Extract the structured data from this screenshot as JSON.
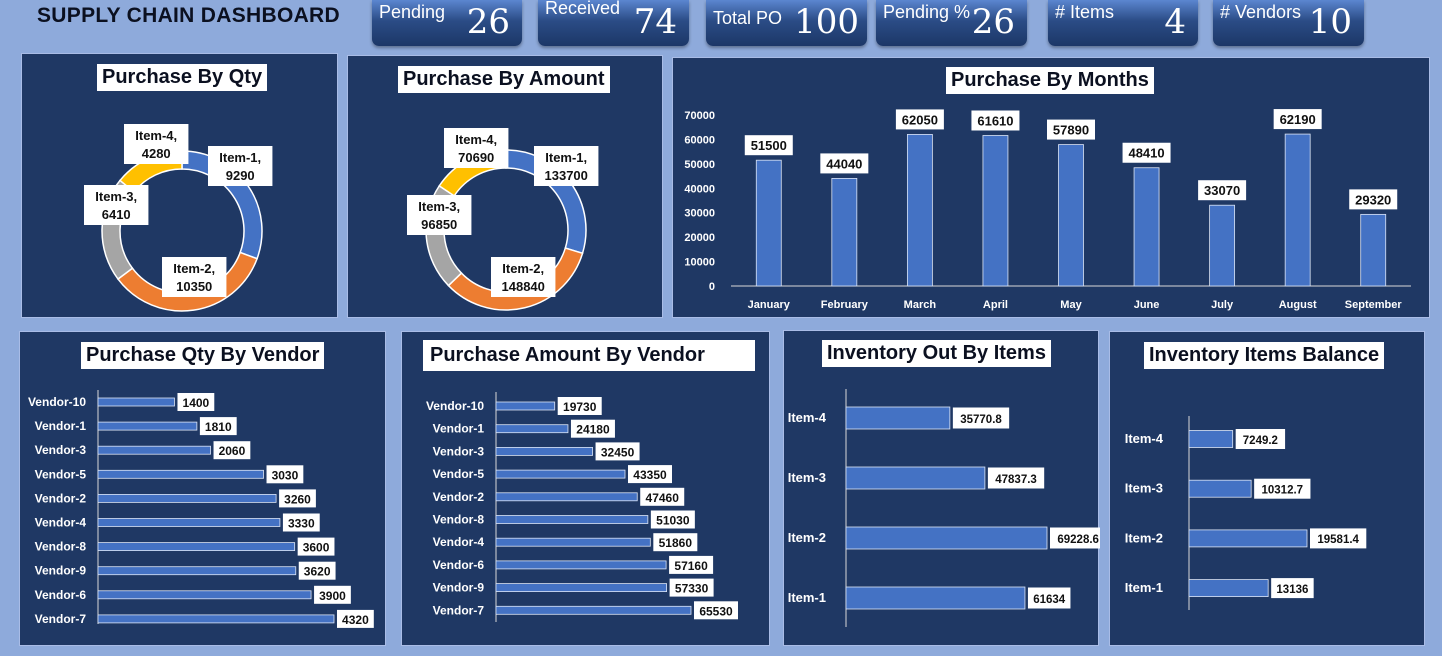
{
  "header": {
    "title": "SUPPLY CHAIN DASHBOARD"
  },
  "kpis": [
    {
      "label": "Pending",
      "value": "26"
    },
    {
      "label": "Received",
      "value": "74"
    },
    {
      "label": "Total PO",
      "value": "100"
    },
    {
      "label": "Pending %",
      "value": "26"
    },
    {
      "label": "# Items",
      "value": "4"
    },
    {
      "label": "# Vendors",
      "value": "10"
    }
  ],
  "colors": {
    "panel": "#1f3864",
    "bar": "#4472c4",
    "item1": "#4472c4",
    "item2": "#ed7d31",
    "item3": "#a5a5a5",
    "item4": "#ffc000"
  },
  "chart_data": [
    {
      "type": "pie",
      "title": "Purchase By Qty",
      "categories": [
        "Item-1",
        "Item-2",
        "Item-3",
        "Item-4"
      ],
      "values": [
        9290,
        10350,
        6410,
        4280
      ]
    },
    {
      "type": "pie",
      "title": "Purchase By Amount",
      "categories": [
        "Item-1",
        "Item-2",
        "Item-3",
        "Item-4"
      ],
      "values": [
        133700,
        148840,
        96850,
        70690
      ]
    },
    {
      "type": "bar",
      "title": "Purchase By Months",
      "categories": [
        "January",
        "February",
        "March",
        "April",
        "May",
        "June",
        "July",
        "August",
        "September"
      ],
      "values": [
        51500,
        44040,
        62050,
        61610,
        57890,
        48410,
        33070,
        62190,
        29320
      ],
      "ylim": [
        0,
        70000
      ],
      "yticks": [
        0,
        10000,
        20000,
        30000,
        40000,
        50000,
        60000,
        70000
      ]
    },
    {
      "type": "bar",
      "orientation": "horizontal",
      "title": "Purchase Qty By Vendor",
      "categories": [
        "Vendor-10",
        "Vendor-1",
        "Vendor-3",
        "Vendor-5",
        "Vendor-2",
        "Vendor-4",
        "Vendor-8",
        "Vendor-9",
        "Vendor-6",
        "Vendor-7"
      ],
      "values": [
        1400,
        1810,
        2060,
        3030,
        3260,
        3330,
        3600,
        3620,
        3900,
        4320
      ]
    },
    {
      "type": "bar",
      "orientation": "horizontal",
      "title": "Purchase Amount By Vendor",
      "categories": [
        "Vendor-10",
        "Vendor-1",
        "Vendor-3",
        "Vendor-5",
        "Vendor-2",
        "Vendor-8",
        "Vendor-4",
        "Vendor-6",
        "Vendor-9",
        "Vendor-7"
      ],
      "values": [
        19730,
        24180,
        32450,
        43350,
        47460,
        51030,
        51860,
        57160,
        57330,
        65530
      ]
    },
    {
      "type": "bar",
      "orientation": "horizontal",
      "title": "Inventory Out By Items",
      "categories": [
        "Item-4",
        "Item-3",
        "Item-2",
        "Item-1"
      ],
      "values": [
        35770.8,
        47837.3,
        69228.6,
        61634
      ]
    },
    {
      "type": "bar",
      "orientation": "horizontal",
      "title": "Inventory Items Balance",
      "categories": [
        "Item-4",
        "Item-3",
        "Item-2",
        "Item-1"
      ],
      "values": [
        7249.2,
        10312.7,
        19581.4,
        13136
      ]
    }
  ]
}
